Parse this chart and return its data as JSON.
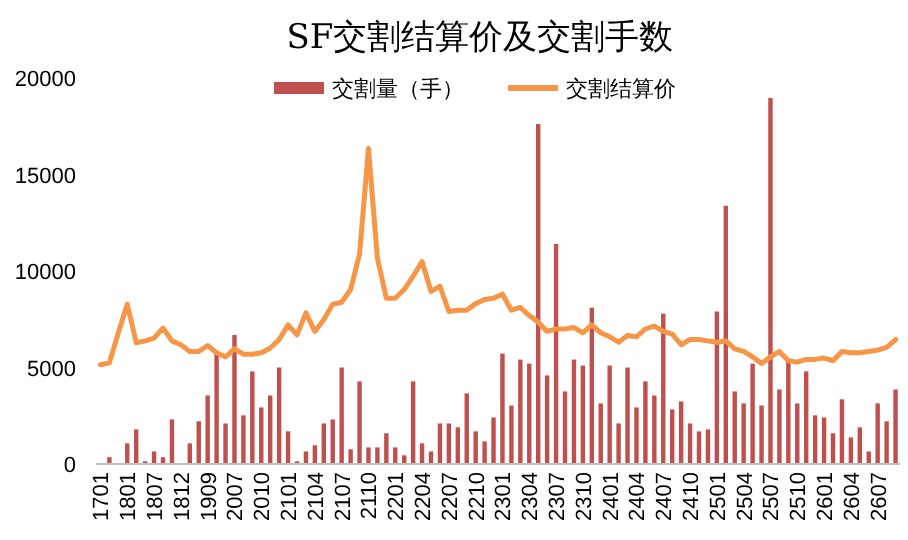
{
  "chart_data": {
    "type": "bar",
    "title": "SF交割结算价及交割手数",
    "categories": [
      "1701",
      null,
      null,
      "1801",
      null,
      null,
      "1807",
      null,
      null,
      "1812",
      null,
      null,
      "1909",
      null,
      null,
      "2007",
      null,
      null,
      "2010",
      null,
      null,
      "2101",
      null,
      null,
      "2104",
      null,
      null,
      "2107",
      null,
      null,
      "2110",
      null,
      null,
      "2201",
      null,
      null,
      "2204",
      null,
      null,
      "2207",
      null,
      null,
      "2210",
      null,
      null,
      "2301",
      null,
      null,
      "2304",
      null,
      null,
      "2307",
      null,
      null,
      "2310",
      null,
      null,
      "2401",
      null,
      null,
      "2404",
      null,
      null,
      "2407",
      null,
      null,
      "2410",
      null,
      null,
      "2501",
      null,
      null,
      "2504",
      null,
      null,
      "2507",
      null,
      null,
      "2510",
      null,
      null,
      "2601",
      null,
      null,
      "2604",
      null,
      null,
      "2607",
      null,
      null
    ],
    "series": [
      {
        "name": "交割量（手）",
        "color": "#c0504d",
        "values": [
          0,
          350,
          0,
          1070,
          1790,
          140,
          650,
          350,
          2310,
          0,
          1070,
          2210,
          3550,
          5760,
          2100,
          6690,
          2520,
          4800,
          2930,
          3550,
          5000,
          1690,
          140,
          650,
          970,
          2100,
          2310,
          5000,
          760,
          4280,
          860,
          860,
          1590,
          860,
          450,
          4280,
          1070,
          650,
          2100,
          2100,
          1900,
          3660,
          1690,
          1170,
          2410,
          5720,
          3030,
          5410,
          5200,
          17620,
          4590,
          11410,
          3760,
          5410,
          5100,
          8100,
          3140,
          5100,
          2100,
          5000,
          2930,
          4280,
          3550,
          7790,
          2830,
          3240,
          2100,
          1690,
          1790,
          7900,
          13380,
          3760,
          3140,
          5200,
          3030,
          18970,
          3860,
          5310,
          3140,
          4800,
          2520,
          2410,
          1590,
          3350,
          1380,
          1900,
          650,
          3140,
          2210,
          3860
        ]
      },
      {
        "name": "交割结算价",
        "type": "line",
        "color": "#f79646",
        "values": [
          5140,
          5240,
          6800,
          8280,
          6280,
          6380,
          6520,
          7040,
          6380,
          6180,
          5830,
          5830,
          6140,
          5760,
          5550,
          5970,
          5690,
          5690,
          5760,
          6000,
          6450,
          7210,
          6690,
          7830,
          6870,
          7490,
          8280,
          8380,
          9040,
          10870,
          16350,
          10660,
          8590,
          8590,
          9040,
          9730,
          10490,
          8940,
          9210,
          7900,
          7970,
          7970,
          8310,
          8520,
          8590,
          8800,
          7970,
          8110,
          7690,
          7350,
          6870,
          7000,
          7000,
          7070,
          6800,
          7210,
          6800,
          6590,
          6310,
          6660,
          6590,
          7000,
          7140,
          6870,
          6730,
          6180,
          6450,
          6450,
          6380,
          6310,
          6380,
          5970,
          5830,
          5550,
          5210,
          5550,
          5830,
          5350,
          5280,
          5420,
          5420,
          5490,
          5350,
          5830,
          5760,
          5760,
          5830,
          5900,
          6040,
          6450
        ]
      }
    ],
    "ylim": [
      0,
      20000
    ],
    "yticks": [
      0,
      5000,
      10000,
      15000,
      20000
    ],
    "grid": false,
    "legend": "top"
  }
}
